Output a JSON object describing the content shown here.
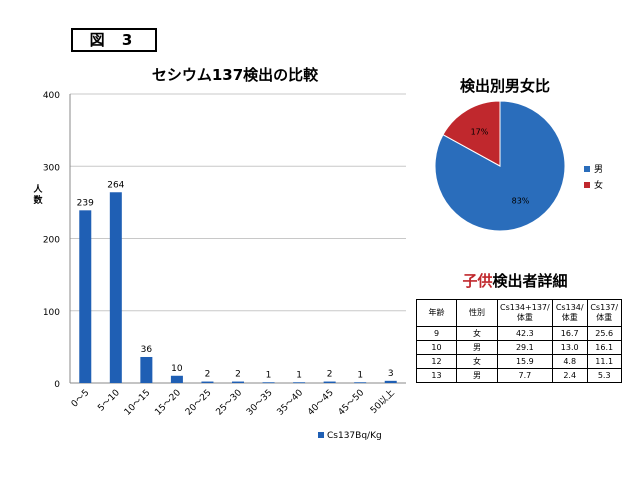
{
  "figure_label": "図 3",
  "bar_title": "セシウム137検出の比較",
  "pie_title": "検出別男女比",
  "table": {
    "title_red": "子供",
    "title_rest": "検出者詳細",
    "headers": [
      "年齢",
      "性別",
      "Cs134+137/\n体重",
      "Cs134/\n体重",
      "Cs137/\n体重"
    ],
    "rows": [
      [
        "9",
        "女",
        "42.3",
        "16.7",
        "25.6"
      ],
      [
        "10",
        "男",
        "29.1",
        "13.0",
        "16.1"
      ],
      [
        "12",
        "女",
        "15.9",
        "4.8",
        "11.1"
      ],
      [
        "13",
        "男",
        "7.7",
        "2.4",
        "5.3"
      ]
    ]
  },
  "chart_data": [
    {
      "type": "bar",
      "title": "セシウム137検出の比較",
      "ylabel": "人\n数",
      "ylim": [
        0,
        400
      ],
      "yticks": [
        0,
        100,
        200,
        300,
        400
      ],
      "categories": [
        "0〜5",
        "5〜10",
        "10〜15",
        "15〜20",
        "20〜25",
        "25〜30",
        "30〜35",
        "35〜40",
        "40〜45",
        "45〜50",
        "50以上"
      ],
      "series": [
        {
          "name": "Cs137Bq/Kg",
          "values": [
            239,
            264,
            36,
            10,
            2,
            2,
            1,
            1,
            2,
            1,
            3
          ],
          "color": "#1f5fb4"
        }
      ],
      "grid": true,
      "legend": "bottom-right"
    },
    {
      "type": "pie",
      "title": "検出別男女比",
      "labels": [
        "男",
        "女"
      ],
      "values": [
        83,
        17
      ],
      "value_labels": [
        "83%",
        "17%"
      ],
      "colors": [
        "#2a6dbb",
        "#c0282d"
      ],
      "legend": "right"
    }
  ]
}
